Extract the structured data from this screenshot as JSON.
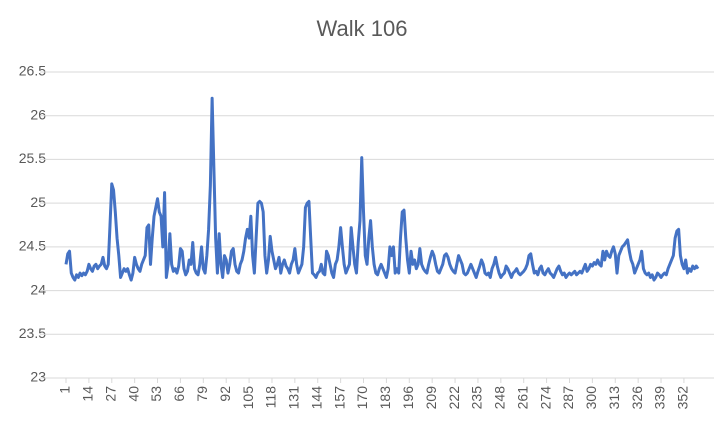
{
  "chart_data": {
    "type": "line",
    "title": "Walk 106",
    "x": [
      1,
      2,
      3,
      4,
      5,
      6,
      7,
      8,
      9,
      10,
      11,
      12,
      13,
      14,
      15,
      16,
      17,
      18,
      19,
      20,
      21,
      22,
      23,
      24,
      25,
      26,
      27,
      28,
      29,
      30,
      31,
      32,
      33,
      34,
      35,
      36,
      37,
      38,
      39,
      40,
      41,
      42,
      43,
      44,
      45,
      46,
      47,
      48,
      49,
      50,
      51,
      52,
      53,
      54,
      55,
      56,
      57,
      58,
      59,
      60,
      61,
      62,
      63,
      64,
      65,
      66,
      67,
      68,
      69,
      70,
      71,
      72,
      73,
      74,
      75,
      76,
      77,
      78,
      79,
      80,
      81,
      82,
      83,
      84,
      85,
      86,
      87,
      88,
      89,
      90,
      91,
      92,
      93,
      94,
      95,
      96,
      97,
      98,
      99,
      100,
      101,
      102,
      103,
      104,
      105,
      106,
      107,
      108,
      109,
      110,
      111,
      112,
      113,
      114,
      115,
      116,
      117,
      118,
      119,
      120,
      121,
      122,
      123,
      124,
      125,
      126,
      127,
      128,
      129,
      130,
      131,
      132,
      133,
      134,
      135,
      136,
      137,
      138,
      139,
      140,
      141,
      142,
      143,
      144,
      145,
      146,
      147,
      148,
      149,
      150,
      151,
      152,
      153,
      154,
      155,
      156,
      157,
      158,
      159,
      160,
      161,
      162,
      163,
      164,
      165,
      166,
      167,
      168,
      169,
      170,
      171,
      172,
      173,
      174,
      175,
      176,
      177,
      178,
      179,
      180,
      181,
      182,
      183,
      184,
      185,
      186,
      187,
      188,
      189,
      190,
      191,
      192,
      193,
      194,
      195,
      196,
      197,
      198,
      199,
      200,
      201,
      202,
      203,
      204,
      205,
      206,
      207,
      208,
      209,
      210,
      211,
      212,
      213,
      214,
      215,
      216,
      217,
      218,
      219,
      220,
      221,
      222,
      223,
      224,
      225,
      226,
      227,
      228,
      229,
      230,
      231,
      232,
      233,
      234,
      235,
      236,
      237,
      238,
      239,
      240,
      241,
      242,
      243,
      244,
      245,
      246,
      247,
      248,
      249,
      250,
      251,
      252,
      253,
      254,
      255,
      256,
      257,
      258,
      259,
      260,
      261,
      262,
      263,
      264,
      265,
      266,
      267,
      268,
      269,
      270,
      271,
      272,
      273,
      274,
      275,
      276,
      277,
      278,
      279,
      280,
      281,
      282,
      283,
      284,
      285,
      286,
      287,
      288,
      289,
      290,
      291,
      292,
      293,
      294,
      295,
      296,
      297,
      298,
      299,
      300,
      301,
      302,
      303,
      304,
      305,
      306,
      307,
      308,
      309,
      310,
      311,
      312,
      313,
      314,
      315,
      316,
      317,
      318,
      319,
      320,
      321,
      322,
      323,
      324,
      325,
      326,
      327,
      328,
      329,
      330,
      331,
      332,
      333,
      334,
      335,
      336,
      337,
      338,
      339,
      340,
      341,
      342,
      343,
      344,
      345,
      346,
      347,
      348,
      349,
      350,
      351,
      352,
      353,
      354,
      355,
      356,
      357,
      358,
      359,
      360
    ],
    "series": [
      {
        "color": "#4472c4",
        "values": [
          24.3,
          24.42,
          24.45,
          24.2,
          24.15,
          24.12,
          24.18,
          24.15,
          24.2,
          24.17,
          24.2,
          24.18,
          24.22,
          24.3,
          24.25,
          24.22,
          24.28,
          24.3,
          24.25,
          24.28,
          24.3,
          24.38,
          24.28,
          24.25,
          24.3,
          24.75,
          25.22,
          25.15,
          24.9,
          24.6,
          24.4,
          24.15,
          24.2,
          24.25,
          24.22,
          24.25,
          24.18,
          24.12,
          24.2,
          24.38,
          24.3,
          24.25,
          24.22,
          24.3,
          24.35,
          24.4,
          24.72,
          24.75,
          24.3,
          24.6,
          24.85,
          24.95,
          25.05,
          24.9,
          24.85,
          24.5,
          25.12,
          24.15,
          24.3,
          24.65,
          24.3,
          24.22,
          24.25,
          24.2,
          24.28,
          24.48,
          24.45,
          24.25,
          24.18,
          24.22,
          24.35,
          24.3,
          24.55,
          24.25,
          24.2,
          24.18,
          24.3,
          24.5,
          24.25,
          24.2,
          24.4,
          24.7,
          25.2,
          26.2,
          25.4,
          24.6,
          24.2,
          24.65,
          24.3,
          24.15,
          24.4,
          24.35,
          24.2,
          24.3,
          24.45,
          24.48,
          24.3,
          24.22,
          24.2,
          24.3,
          24.35,
          24.45,
          24.6,
          24.7,
          24.6,
          24.85,
          24.4,
          24.2,
          24.6,
          25.0,
          25.02,
          25.0,
          24.9,
          24.4,
          24.2,
          24.35,
          24.62,
          24.45,
          24.35,
          24.25,
          24.3,
          24.38,
          24.2,
          24.3,
          24.35,
          24.28,
          24.25,
          24.2,
          24.3,
          24.35,
          24.48,
          24.3,
          24.2,
          24.25,
          24.3,
          24.5,
          24.95,
          25.0,
          25.02,
          24.6,
          24.2,
          24.18,
          24.15,
          24.2,
          24.22,
          24.3,
          24.2,
          24.18,
          24.45,
          24.4,
          24.3,
          24.2,
          24.15,
          24.3,
          24.35,
          24.5,
          24.72,
          24.5,
          24.3,
          24.2,
          24.25,
          24.3,
          24.72,
          24.5,
          24.3,
          24.2,
          24.55,
          24.8,
          25.52,
          24.9,
          24.4,
          24.3,
          24.6,
          24.8,
          24.5,
          24.3,
          24.2,
          24.18,
          24.25,
          24.3,
          24.25,
          24.2,
          24.15,
          24.25,
          24.5,
          24.4,
          24.5,
          24.2,
          24.25,
          24.2,
          24.6,
          24.9,
          24.92,
          24.6,
          24.35,
          24.2,
          24.45,
          24.3,
          24.35,
          24.25,
          24.3,
          24.48,
          24.3,
          24.25,
          24.22,
          24.2,
          24.3,
          24.38,
          24.45,
          24.4,
          24.3,
          24.22,
          24.2,
          24.25,
          24.3,
          24.4,
          24.42,
          24.38,
          24.3,
          24.25,
          24.22,
          24.2,
          24.3,
          24.4,
          24.35,
          24.3,
          24.2,
          24.18,
          24.2,
          24.25,
          24.3,
          24.25,
          24.2,
          24.15,
          24.22,
          24.28,
          24.35,
          24.3,
          24.2,
          24.18,
          24.2,
          24.15,
          24.25,
          24.3,
          24.38,
          24.28,
          24.2,
          24.15,
          24.18,
          24.2,
          24.28,
          24.25,
          24.2,
          24.15,
          24.2,
          24.22,
          24.25,
          24.2,
          24.18,
          24.2,
          24.22,
          24.25,
          24.3,
          24.4,
          24.42,
          24.3,
          24.2,
          24.22,
          24.18,
          24.25,
          24.28,
          24.2,
          24.18,
          24.22,
          24.25,
          24.2,
          24.18,
          24.15,
          24.2,
          24.25,
          24.28,
          24.22,
          24.18,
          24.2,
          24.15,
          24.18,
          24.2,
          24.18,
          24.2,
          24.22,
          24.18,
          24.2,
          24.22,
          24.2,
          24.25,
          24.3,
          24.22,
          24.25,
          24.3,
          24.28,
          24.32,
          24.3,
          24.35,
          24.3,
          24.28,
          24.45,
          24.35,
          24.45,
          24.4,
          24.38,
          24.45,
          24.5,
          24.42,
          24.2,
          24.4,
          24.45,
          24.5,
          24.52,
          24.55,
          24.58,
          24.45,
          24.35,
          24.3,
          24.2,
          24.25,
          24.3,
          24.35,
          24.45,
          24.25,
          24.2,
          24.18,
          24.2,
          24.15,
          24.18,
          24.12,
          24.15,
          24.2,
          24.18,
          24.15,
          24.18,
          24.2,
          24.18,
          24.25,
          24.3,
          24.35,
          24.4,
          24.6,
          24.68,
          24.7,
          24.4,
          24.3,
          24.25,
          24.35,
          24.2,
          24.25,
          24.22,
          24.28,
          24.25,
          24.28,
          24.25
        ]
      }
    ],
    "xlim": [
      1,
      360
    ],
    "xticks": [
      1,
      14,
      27,
      40,
      53,
      66,
      79,
      92,
      105,
      118,
      131,
      144,
      157,
      170,
      183,
      196,
      209,
      222,
      235,
      248,
      261,
      274,
      287,
      300,
      313,
      326,
      339,
      352
    ],
    "ylim": [
      23,
      26.5
    ],
    "yticks": [
      23,
      23.5,
      24,
      24.5,
      25,
      25.5,
      26,
      26.5
    ],
    "grid": true
  }
}
